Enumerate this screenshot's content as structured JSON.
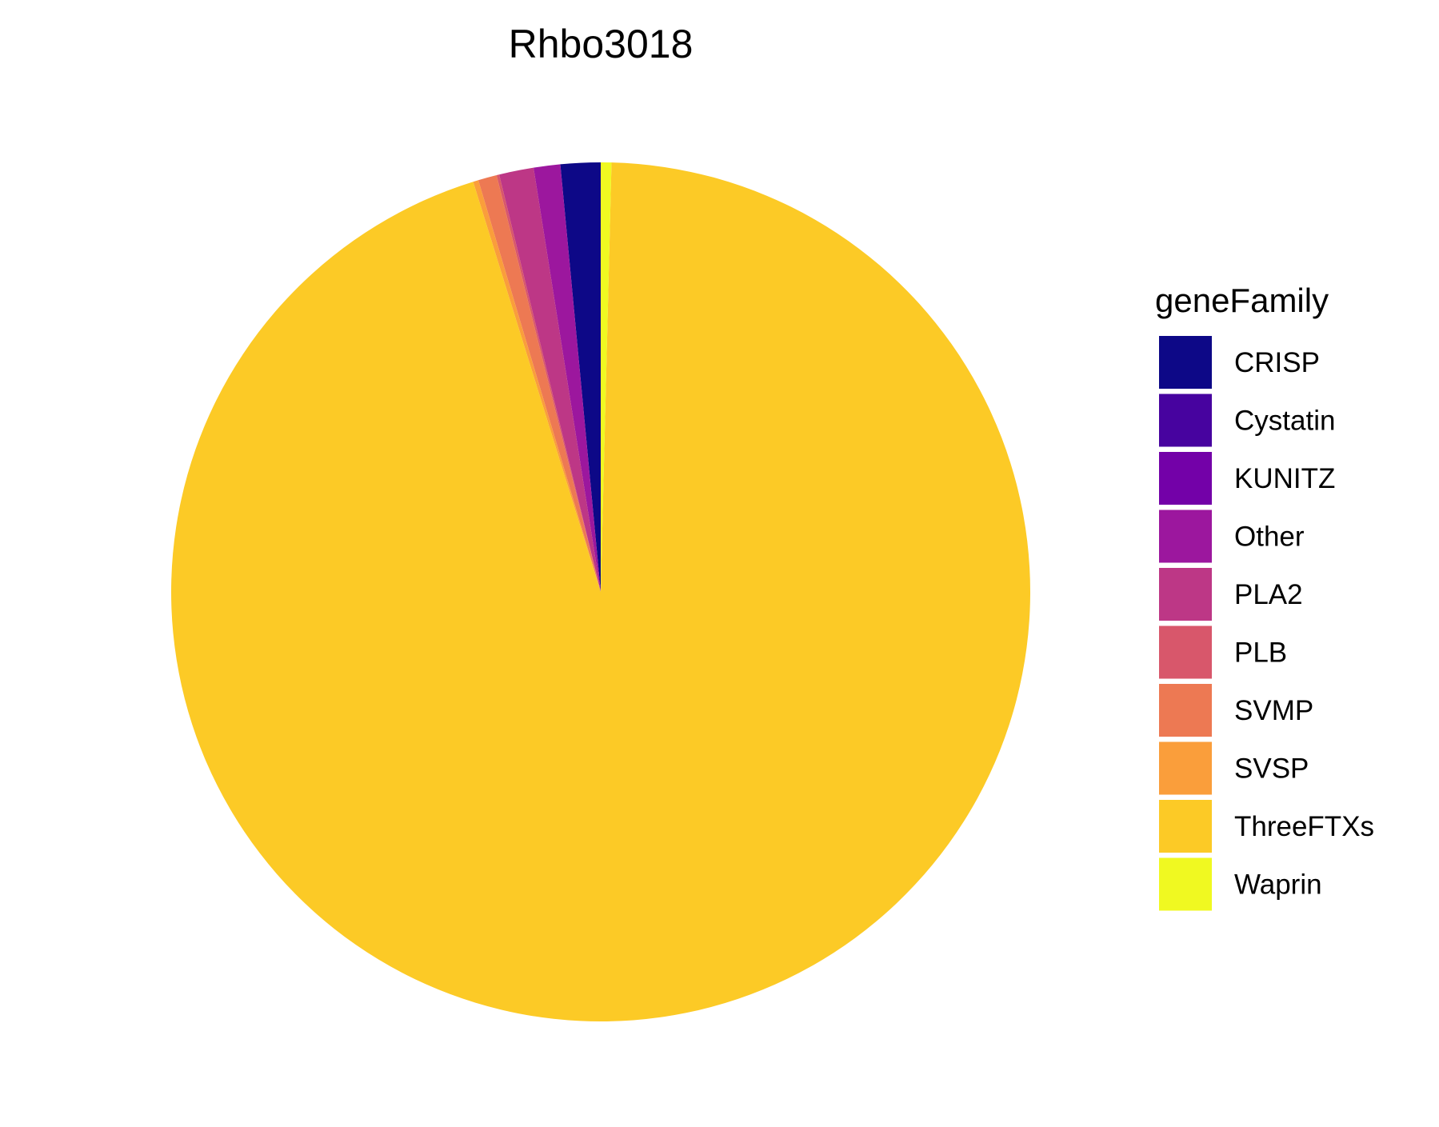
{
  "chart_data": {
    "type": "pie",
    "title": "Rhbo3018",
    "legend_title": "geneFamily",
    "legend_position": "right",
    "start": "12 o'clock",
    "direction": "counterclockwise",
    "slices": [
      {
        "label": "CRISP",
        "value": 1.5,
        "color": "#0D0887"
      },
      {
        "label": "Cystatin",
        "value": 0.0,
        "color": "#47039F"
      },
      {
        "label": "KUNITZ",
        "value": 0.0,
        "color": "#7301A8"
      },
      {
        "label": "Other",
        "value": 1.0,
        "color": "#9C179E"
      },
      {
        "label": "PLA2",
        "value": 1.3,
        "color": "#BD3786"
      },
      {
        "label": "PLB",
        "value": 0.1,
        "color": "#D8576B"
      },
      {
        "label": "SVMP",
        "value": 0.7,
        "color": "#ED7953"
      },
      {
        "label": "SVSP",
        "value": 0.2,
        "color": "#FA9E3B"
      },
      {
        "label": "ThreeFTXs",
        "value": 94.8,
        "color": "#FCCA26"
      },
      {
        "label": "Waprin",
        "value": 0.4,
        "color": "#F0F921"
      }
    ]
  }
}
